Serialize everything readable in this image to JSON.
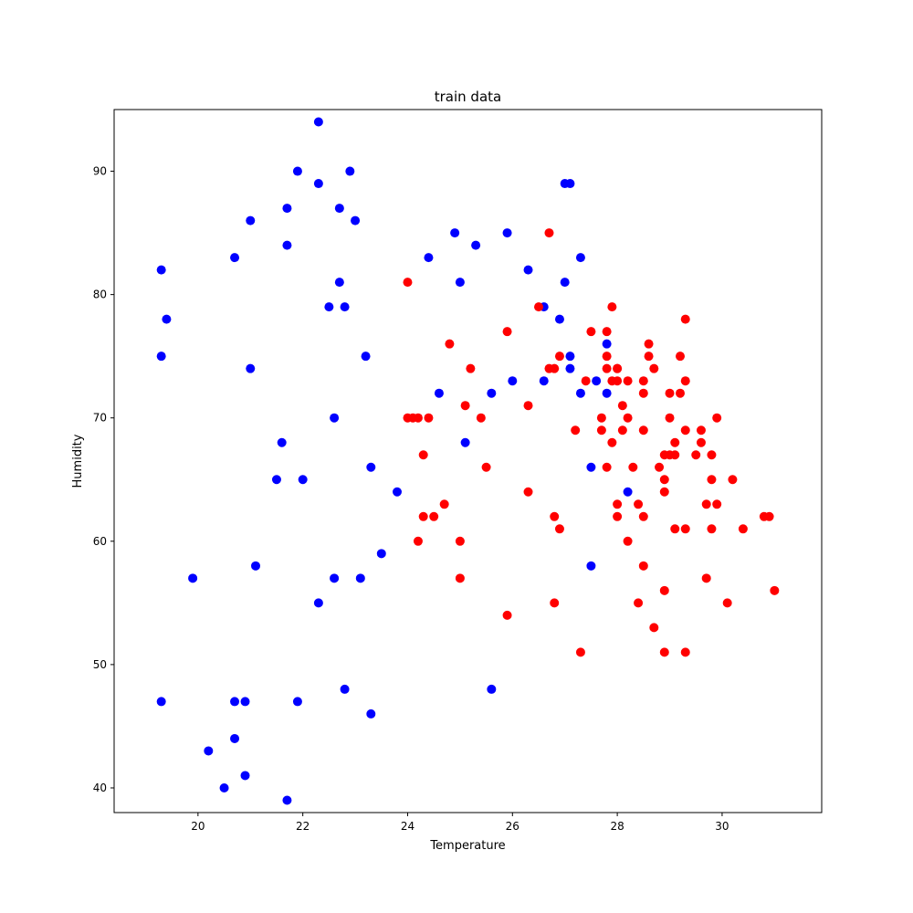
{
  "chart_data": {
    "type": "scatter",
    "title": "train data",
    "xlabel": "Temperature",
    "ylabel": "Humidity",
    "xlim": [
      18.4,
      31.9
    ],
    "ylim": [
      38,
      95
    ],
    "xticks": [
      20,
      22,
      24,
      26,
      28,
      30
    ],
    "yticks": [
      40,
      50,
      60,
      70,
      80,
      90
    ],
    "grid": false,
    "series": [
      {
        "color": "#0000ff",
        "x": [
          22.3,
          21.9,
          22.9,
          22.3,
          22.7,
          21.7,
          21.0,
          23.0,
          21.7,
          20.7,
          19.3,
          22.5,
          22.8,
          22.7,
          19.4,
          19.3,
          21.0,
          23.2,
          22.6,
          21.6,
          21.5,
          22.0,
          23.3,
          23.8,
          21.1,
          23.5,
          19.9,
          22.6,
          23.1,
          22.3,
          22.8,
          23.3,
          21.9,
          19.3,
          20.7,
          20.9,
          20.7,
          20.2,
          20.9,
          20.5,
          21.7,
          24.9,
          25.9,
          25.3,
          24.4,
          25.0,
          26.3,
          27.0,
          27.1,
          27.3,
          26.6,
          26.9,
          27.1,
          27.1,
          27.0,
          24.6,
          25.6,
          26.0,
          26.6,
          27.3,
          27.6,
          27.8,
          27.8,
          28.2,
          25.1,
          27.5,
          27.5,
          25.6
        ],
        "y": [
          94,
          90,
          90,
          89,
          87,
          87,
          86,
          86,
          84,
          83,
          82,
          79,
          79,
          81,
          78,
          75,
          74,
          75,
          70,
          68,
          65,
          65,
          66,
          64,
          58,
          59,
          57,
          57,
          57,
          55,
          48,
          46,
          47,
          47,
          47,
          47,
          44,
          43,
          41,
          40,
          39,
          85,
          85,
          84,
          83,
          81,
          82,
          89,
          89,
          83,
          79,
          78,
          75,
          74,
          81,
          72,
          72,
          73,
          73,
          72,
          73,
          76,
          72,
          64,
          68,
          66,
          58,
          48
        ]
      },
      {
        "color": "#ff0000",
        "x": [
          26.7,
          24.0,
          26.5,
          25.9,
          27.5,
          27.8,
          27.9,
          29.3,
          24.8,
          25.2,
          26.7,
          26.8,
          26.9,
          27.4,
          27.8,
          27.8,
          28.0,
          28.6,
          28.6,
          28.7,
          29.2,
          29.3,
          27.9,
          28.0,
          28.2,
          28.5,
          28.5,
          29.0,
          29.2,
          26.3,
          25.1,
          24.0,
          24.1,
          24.2,
          24.4,
          25.4,
          27.2,
          27.7,
          27.7,
          28.1,
          28.2,
          29.0,
          29.6,
          29.9,
          29.3,
          28.5,
          28.9,
          29.0,
          29.1,
          29.5,
          29.8,
          28.0,
          27.9,
          29.6,
          24.3,
          24.7,
          25.5,
          26.3,
          27.8,
          28.3,
          28.8,
          28.9,
          28.9,
          29.8,
          29.7,
          29.9,
          30.2,
          28.0,
          28.4,
          28.5,
          26.8,
          24.3,
          24.5,
          24.2,
          26.9,
          29.1,
          29.3,
          29.8,
          30.4,
          30.8,
          30.9,
          28.2,
          25.0,
          25.0,
          28.5,
          29.7,
          28.9,
          31.0,
          30.1,
          28.4,
          26.8,
          25.9,
          28.7,
          27.3,
          28.9,
          29.3,
          28.1,
          28.0,
          29.1
        ],
        "y": [
          85,
          81,
          79,
          77,
          77,
          77,
          79,
          78,
          76,
          74,
          74,
          74,
          75,
          73,
          75,
          74,
          74,
          75,
          76,
          74,
          75,
          73,
          73,
          73,
          73,
          73,
          72,
          72,
          72,
          71,
          71,
          70,
          70,
          70,
          70,
          70,
          69,
          70,
          69,
          69,
          70,
          70,
          69,
          70,
          69,
          69,
          67,
          67,
          67,
          67,
          67,
          74,
          68,
          68,
          67,
          63,
          66,
          64,
          66,
          66,
          66,
          65,
          64,
          65,
          63,
          63,
          65,
          63,
          63,
          62,
          62,
          62,
          62,
          60,
          61,
          61,
          61,
          61,
          61,
          62,
          62,
          60,
          60,
          57,
          58,
          57,
          56,
          56,
          55,
          55,
          55,
          54,
          53,
          51,
          51,
          51,
          71,
          62,
          68
        ]
      }
    ]
  }
}
